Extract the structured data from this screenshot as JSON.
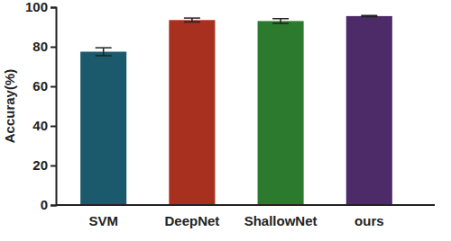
{
  "chart_data": {
    "type": "bar",
    "y_label": "Accuray(%)",
    "categories": [
      "SVM",
      "DeepNet",
      "ShallowNet",
      "ours"
    ],
    "values": [
      77.5,
      93.5,
      93,
      95.5
    ],
    "errors": [
      2,
      1,
      1.2,
      0.3
    ],
    "colors": [
      "#1b5a6c",
      "#a8301f",
      "#2c7a2e",
      "#4d2a68"
    ],
    "ylim": [
      0,
      100
    ],
    "yticks": [
      0,
      20,
      40,
      60,
      80,
      100
    ],
    "grid": false
  }
}
